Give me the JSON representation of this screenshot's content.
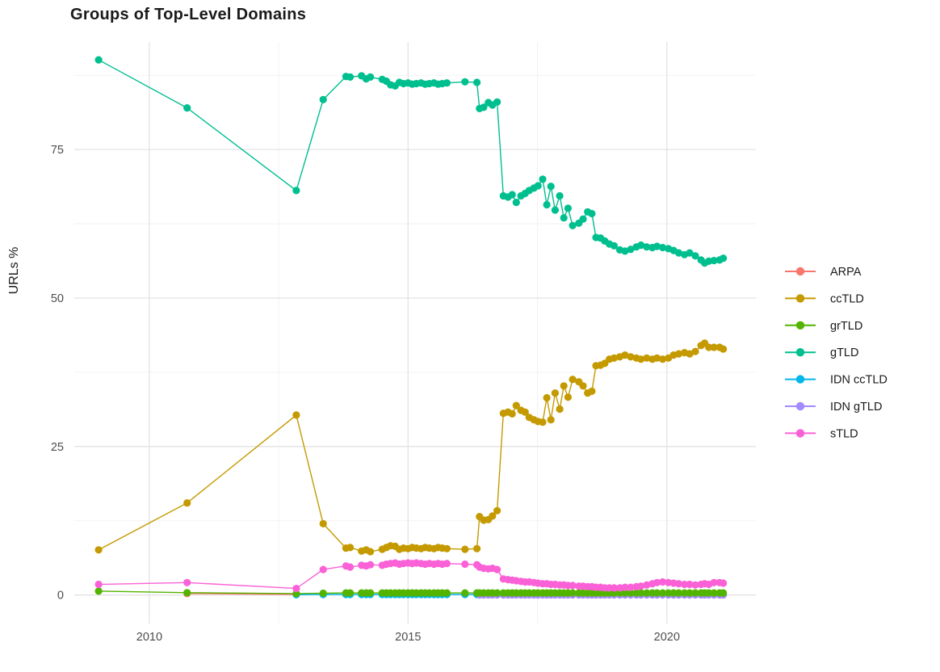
{
  "title": "Groups of Top-Level Domains",
  "chart_data": {
    "type": "line",
    "title": "Groups of Top-Level Domains",
    "xlabel": "",
    "ylabel": "URLs %",
    "xlim": [
      2008.55,
      2021.72
    ],
    "ylim": [
      -4.8,
      93.1
    ],
    "x_ticks": [
      2010,
      2015,
      2020
    ],
    "x_tick_labels": [
      "2010",
      "2015",
      "2020"
    ],
    "x_minor": [
      2012.5,
      2017.5
    ],
    "y_ticks": [
      0,
      25,
      50,
      75
    ],
    "y_tick_labels": [
      "0",
      "25",
      "50",
      "75"
    ],
    "y_minor": [
      12.5,
      37.5,
      62.5,
      87.5
    ],
    "grid": true,
    "grid_major_color": "#e3e3e3",
    "grid_minor_color": "#f1f1f1",
    "tick_label_color": "#4d4d4d",
    "legend_text_color": "#1a1a1a",
    "legend_position": "right",
    "draw_order": [
      "ARPA",
      "IDN ccTLD",
      "IDN gTLD",
      "grTLD",
      "ccTLD",
      "gTLD",
      "sTLD"
    ],
    "dense_x": [
      2013.8,
      2013.88,
      2014.1,
      2014.19,
      2014.27,
      2014.5,
      2014.58,
      2014.66,
      2014.75,
      2014.83,
      2014.91,
      2015.0,
      2015.08,
      2015.16,
      2015.25,
      2015.33,
      2015.41,
      2015.5,
      2015.58,
      2015.66,
      2015.75,
      2016.1,
      2016.33,
      2016.38,
      2016.46,
      2016.55,
      2016.63,
      2016.72,
      2016.84,
      2016.93,
      2017.01,
      2017.09,
      2017.18,
      2017.26,
      2017.34,
      2017.43,
      2017.51,
      2017.6,
      2017.68,
      2017.76,
      2017.84,
      2017.93,
      2018.01,
      2018.09,
      2018.18,
      2018.3,
      2018.38,
      2018.47,
      2018.55,
      2018.63,
      2018.72,
      2018.8,
      2018.89,
      2018.98,
      2019.09,
      2019.19,
      2019.3,
      2019.41,
      2019.5,
      2019.61,
      2019.72,
      2019.81,
      2019.92,
      2020.03,
      2020.13,
      2020.23,
      2020.34,
      2020.44,
      2020.55,
      2020.66,
      2020.73,
      2020.81,
      2020.91,
      2021.02,
      2021.09
    ],
    "series": [
      {
        "name": "ARPA",
        "color": "#F8766D",
        "prefix": [
          [
            2010.73,
            0.25
          ],
          [
            2012.84,
            0.1
          ]
        ]
      },
      {
        "name": "ccTLD",
        "color": "#C49A00",
        "prefix": [
          [
            2009.02,
            7.6
          ],
          [
            2010.73,
            15.5
          ],
          [
            2012.84,
            30.3
          ],
          [
            2013.36,
            12.0
          ]
        ],
        "dense_y": [
          7.9,
          8.0,
          7.4,
          7.6,
          7.3,
          7.7,
          8.0,
          8.3,
          8.2,
          7.7,
          7.9,
          7.8,
          8.0,
          7.9,
          7.8,
          8.0,
          7.9,
          7.8,
          8.0,
          7.9,
          7.8,
          7.7,
          7.8,
          13.2,
          12.6,
          12.7,
          13.3,
          14.2,
          30.6,
          30.8,
          30.5,
          31.9,
          31.1,
          30.8,
          29.9,
          29.5,
          29.2,
          29.1,
          33.2,
          29.5,
          34.0,
          31.3,
          35.2,
          33.3,
          36.3,
          35.9,
          35.2,
          34.0,
          34.3,
          38.6,
          38.7,
          39.0,
          39.7,
          39.9,
          40.1,
          40.4,
          40.1,
          39.9,
          39.7,
          39.9,
          39.7,
          39.9,
          39.7,
          39.9,
          40.4,
          40.6,
          40.8,
          40.6,
          41.0,
          42.0,
          42.4,
          41.7,
          41.7,
          41.7,
          41.4
        ]
      },
      {
        "name": "grTLD",
        "color": "#53B400",
        "prefix": [
          [
            2009.02,
            0.65
          ],
          [
            2010.73,
            0.4
          ],
          [
            2012.84,
            0.25
          ],
          [
            2013.36,
            0.3
          ]
        ],
        "dense_const": 0.35
      },
      {
        "name": "gTLD",
        "color": "#00BF8F",
        "prefix": [
          [
            2009.02,
            90.1
          ],
          [
            2010.73,
            82.0
          ],
          [
            2012.84,
            68.1
          ],
          [
            2013.36,
            83.4
          ]
        ],
        "dense_y": [
          87.3,
          87.2,
          87.4,
          86.9,
          87.2,
          86.8,
          86.5,
          85.9,
          85.7,
          86.3,
          86.1,
          86.2,
          86.0,
          86.1,
          86.2,
          86.0,
          86.1,
          86.2,
          86.0,
          86.1,
          86.2,
          86.4,
          86.3,
          81.9,
          82.1,
          82.9,
          82.5,
          83.0,
          67.2,
          67.0,
          67.4,
          66.1,
          67.2,
          67.6,
          68.1,
          68.5,
          68.9,
          70.0,
          65.7,
          68.8,
          64.8,
          67.2,
          63.5,
          65.1,
          62.2,
          62.6,
          63.3,
          64.5,
          64.2,
          60.2,
          60.1,
          59.6,
          59.1,
          58.8,
          58.1,
          57.9,
          58.2,
          58.6,
          58.9,
          58.6,
          58.5,
          58.7,
          58.5,
          58.3,
          58.0,
          57.6,
          57.3,
          57.6,
          57.1,
          56.4,
          55.9,
          56.2,
          56.3,
          56.4,
          56.7
        ]
      },
      {
        "name": "IDN ccTLD",
        "color": "#00B6EB",
        "prefix": [
          [
            2012.84,
            0.05
          ],
          [
            2013.36,
            0.1
          ]
        ],
        "dense_const": 0.1
      },
      {
        "name": "IDN gTLD",
        "color": "#A58AFF",
        "dense_from": 23,
        "dense_const": 0.03
      },
      {
        "name": "sTLD",
        "color": "#FB61D7",
        "prefix": [
          [
            2009.02,
            1.8
          ],
          [
            2010.73,
            2.1
          ],
          [
            2012.84,
            1.1
          ],
          [
            2013.36,
            4.3
          ]
        ],
        "dense_y": [
          4.9,
          4.7,
          5.0,
          4.9,
          5.1,
          5.0,
          5.2,
          5.3,
          5.4,
          5.2,
          5.3,
          5.4,
          5.3,
          5.4,
          5.3,
          5.2,
          5.3,
          5.2,
          5.3,
          5.2,
          5.3,
          5.2,
          5.1,
          4.7,
          4.5,
          4.4,
          4.5,
          4.3,
          2.7,
          2.6,
          2.5,
          2.4,
          2.3,
          2.2,
          2.2,
          2.1,
          2.0,
          1.9,
          1.9,
          1.8,
          1.8,
          1.7,
          1.7,
          1.6,
          1.6,
          1.5,
          1.5,
          1.4,
          1.4,
          1.3,
          1.3,
          1.2,
          1.2,
          1.2,
          1.2,
          1.3,
          1.3,
          1.4,
          1.5,
          1.7,
          1.9,
          2.1,
          2.2,
          2.1,
          2.0,
          1.9,
          1.8,
          1.8,
          1.7,
          1.8,
          1.9,
          1.8,
          2.1,
          2.1,
          2.0
        ]
      }
    ]
  }
}
